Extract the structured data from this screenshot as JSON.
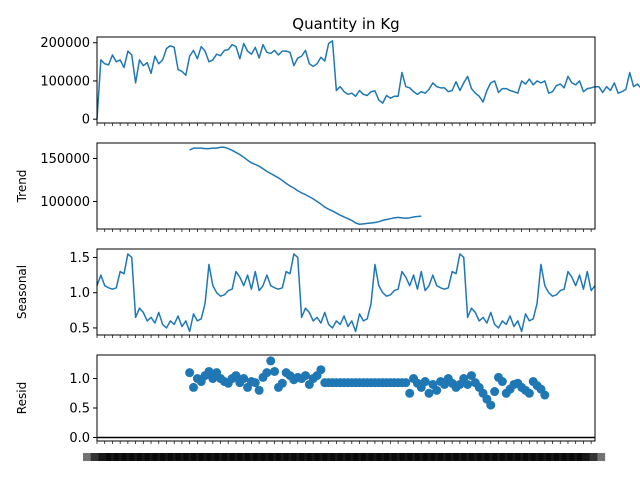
{
  "title": "Quantity in Kg",
  "colors": {
    "series": "#1f77b4",
    "axis": "#000000",
    "background": "#ffffff"
  },
  "chart_data": [
    {
      "type": "line",
      "panel": "observed",
      "ylabel": "",
      "xlim": [
        0,
        129
      ],
      "ylim": [
        -10000,
        215000
      ],
      "yticks": [
        0,
        100000,
        200000
      ],
      "ytick_labels": [
        "0",
        "100000",
        "200000"
      ],
      "x_start": 0,
      "values": [
        0,
        155000,
        145000,
        142000,
        168000,
        150000,
        155000,
        135000,
        178000,
        168000,
        95000,
        155000,
        140000,
        148000,
        120000,
        165000,
        145000,
        155000,
        185000,
        192000,
        188000,
        130000,
        125000,
        115000,
        165000,
        180000,
        158000,
        190000,
        178000,
        150000,
        155000,
        170000,
        166000,
        180000,
        182000,
        195000,
        190000,
        158000,
        198000,
        178000,
        170000,
        188000,
        160000,
        195000,
        175000,
        172000,
        180000,
        168000,
        178000,
        178000,
        175000,
        140000,
        160000,
        165000,
        180000,
        145000,
        138000,
        145000,
        162000,
        152000,
        198000,
        205000,
        75000,
        85000,
        72000,
        65000,
        68000,
        60000,
        75000,
        65000,
        62000,
        72000,
        74000,
        50000,
        42000,
        62000,
        55000,
        60000,
        60000,
        122000,
        85000,
        82000,
        72000,
        65000,
        72000,
        68000,
        78000,
        95000,
        85000,
        82000,
        82000,
        72000,
        75000,
        98000,
        75000,
        95000,
        112000,
        80000,
        68000,
        60000,
        45000,
        75000,
        95000,
        100000,
        70000,
        80000,
        80000,
        75000,
        72000,
        68000,
        100000,
        92000,
        105000,
        90000,
        100000,
        95000,
        100000,
        68000,
        72000,
        88000,
        92000,
        82000,
        112000,
        95000,
        90000,
        100000,
        72000,
        80000,
        82000,
        85000,
        85000,
        70000,
        85000,
        75000,
        95000,
        68000,
        72000,
        78000,
        122000,
        85000,
        92000,
        80000,
        135000
      ]
    },
    {
      "type": "line",
      "panel": "trend",
      "ylabel": "Trend",
      "xlim": [
        0,
        129
      ],
      "ylim": [
        68000,
        168000
      ],
      "yticks": [
        100000,
        150000
      ],
      "ytick_labels": [
        "100000",
        "150000"
      ],
      "x_start": 24,
      "values": [
        160000,
        162000,
        162000,
        162000,
        161500,
        161500,
        162000,
        162000,
        163000,
        163000,
        161500,
        159500,
        157000,
        154500,
        151500,
        148000,
        145000,
        143000,
        141000,
        138000,
        135000,
        132500,
        130000,
        127500,
        124500,
        121000,
        118000,
        115500,
        112500,
        110000,
        108000,
        105500,
        103000,
        100000,
        97000,
        93500,
        91000,
        89000,
        86500,
        84000,
        82000,
        80000,
        78000,
        75000,
        73500,
        74000,
        74500,
        75000,
        75500,
        76500,
        78000,
        79000,
        80000,
        81000,
        81500,
        81000,
        80500,
        81000,
        82000,
        82500,
        83000
      ]
    },
    {
      "type": "line",
      "panel": "seasonal",
      "ylabel": "Seasonal",
      "xlim": [
        0,
        129
      ],
      "ylim": [
        0.4,
        1.62
      ],
      "yticks": [
        0.5,
        1.0,
        1.5
      ],
      "ytick_labels": [
        "0.5",
        "1.0",
        "1.5"
      ],
      "x_start": 0,
      "pattern": [
        1.1,
        1.25,
        1.1,
        1.07,
        1.05,
        1.07,
        1.3,
        1.27,
        1.55,
        1.5,
        0.65,
        0.78,
        0.72,
        0.6,
        0.65,
        0.57,
        0.72,
        0.55,
        0.5,
        0.6,
        0.55,
        0.67,
        0.52,
        0.6,
        0.45,
        0.7,
        0.6,
        0.63,
        0.85,
        1.4,
        1.1,
        1.0,
        0.95,
        0.97,
        1.03,
        1.05,
        1.3,
        1.22,
        1.1,
        1.25,
        1.05,
        1.3,
        1.03
      ],
      "period": 43,
      "length": 130
    },
    {
      "type": "scatter",
      "panel": "resid",
      "ylabel": "Resid",
      "xlim": [
        0,
        129
      ],
      "ylim": [
        -0.06,
        1.4
      ],
      "yticks": [
        0.0,
        0.5,
        1.0
      ],
      "ytick_labels": [
        "0.0",
        "0.5",
        "1.0"
      ],
      "baseline": 0.0,
      "x_start": 24,
      "values": [
        1.1,
        0.85,
        1.0,
        0.95,
        1.05,
        1.12,
        1.0,
        1.1,
        1.0,
        0.95,
        0.92,
        1.0,
        1.05,
        0.93,
        1.0,
        0.85,
        0.95,
        0.93,
        0.8,
        1.02,
        1.1,
        1.3,
        1.12,
        0.85,
        0.92,
        1.1,
        1.05,
        0.98,
        1.02,
        1.0,
        1.05,
        0.9,
        1.0,
        1.05,
        1.15,
        0.93,
        0.93,
        0.93,
        0.93,
        0.93,
        0.93,
        0.93,
        0.93,
        0.93,
        0.93,
        0.93,
        0.93,
        0.93,
        0.93,
        0.93,
        0.93,
        0.93,
        0.93,
        0.93,
        0.93,
        0.93,
        0.93,
        0.75,
        1.0,
        0.92,
        0.85,
        0.95,
        0.75,
        0.9,
        0.8,
        0.95,
        0.9,
        1.0,
        0.92,
        0.85,
        0.9,
        1.0,
        0.9,
        1.05,
        0.93,
        0.85,
        0.75,
        0.65,
        0.55,
        0.78,
        1.02,
        0.95,
        0.75,
        0.82,
        0.9,
        0.92,
        0.85,
        0.8,
        0.75,
        0.95,
        0.88,
        0.82,
        0.72
      ]
    }
  ]
}
